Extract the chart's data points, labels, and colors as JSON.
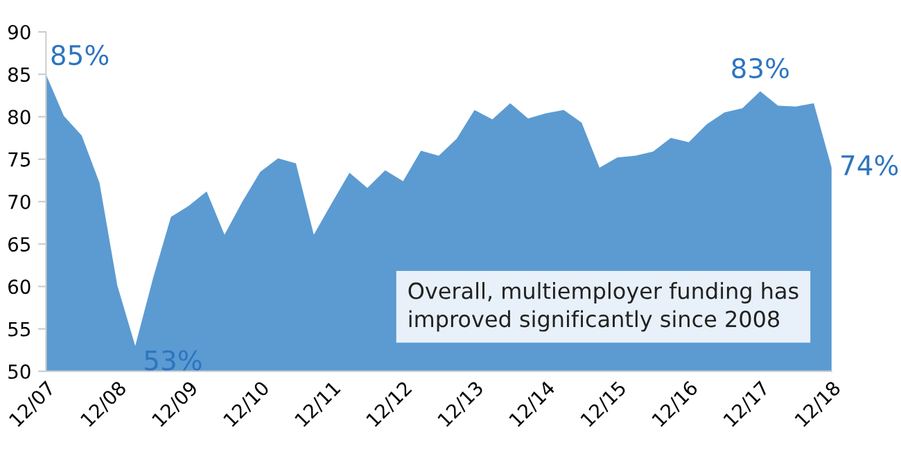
{
  "chart_data": {
    "type": "area",
    "categories": [
      "12/07",
      null,
      null,
      null,
      "12/08",
      null,
      null,
      null,
      "12/09",
      null,
      null,
      null,
      "12/10",
      null,
      null,
      null,
      "12/11",
      null,
      null,
      null,
      "12/12",
      null,
      null,
      null,
      "12/13",
      null,
      null,
      null,
      "12/14",
      null,
      null,
      null,
      "12/15",
      null,
      null,
      null,
      "12/16",
      null,
      null,
      null,
      "12/17",
      null,
      null,
      null,
      "12/18"
    ],
    "values": [
      85,
      80.1,
      77.8,
      72.2,
      60.1,
      53,
      61,
      68.2,
      69.5,
      71.2,
      66.1,
      70,
      73.5,
      75.1,
      74.5,
      66.1,
      69.8,
      73.4,
      71.6,
      73.7,
      72.4,
      76,
      75.4,
      77.4,
      80.8,
      79.7,
      81.6,
      79.8,
      80.4,
      80.8,
      79.3,
      74,
      75.2,
      75.4,
      75.9,
      77.5,
      77,
      79.1,
      80.5,
      81,
      83,
      81.3,
      81.2,
      81.6,
      74
    ],
    "value_labels": [
      "85%",
      null,
      null,
      null,
      null,
      "53%",
      null,
      null,
      null,
      null,
      null,
      null,
      null,
      null,
      null,
      null,
      null,
      null,
      null,
      null,
      null,
      null,
      null,
      null,
      null,
      null,
      null,
      null,
      null,
      null,
      null,
      null,
      null,
      null,
      null,
      null,
      null,
      null,
      null,
      null,
      "83%",
      null,
      null,
      null,
      "74%"
    ],
    "color": "#5b9bd2",
    "ylim": [
      50,
      90
    ],
    "yticks": [
      50,
      55,
      60,
      65,
      70,
      75,
      80,
      85,
      90
    ],
    "grid": false,
    "legend": false,
    "annotations": [
      "Overall, multiemployer funding has\nimproved significantly since 2008"
    ]
  }
}
